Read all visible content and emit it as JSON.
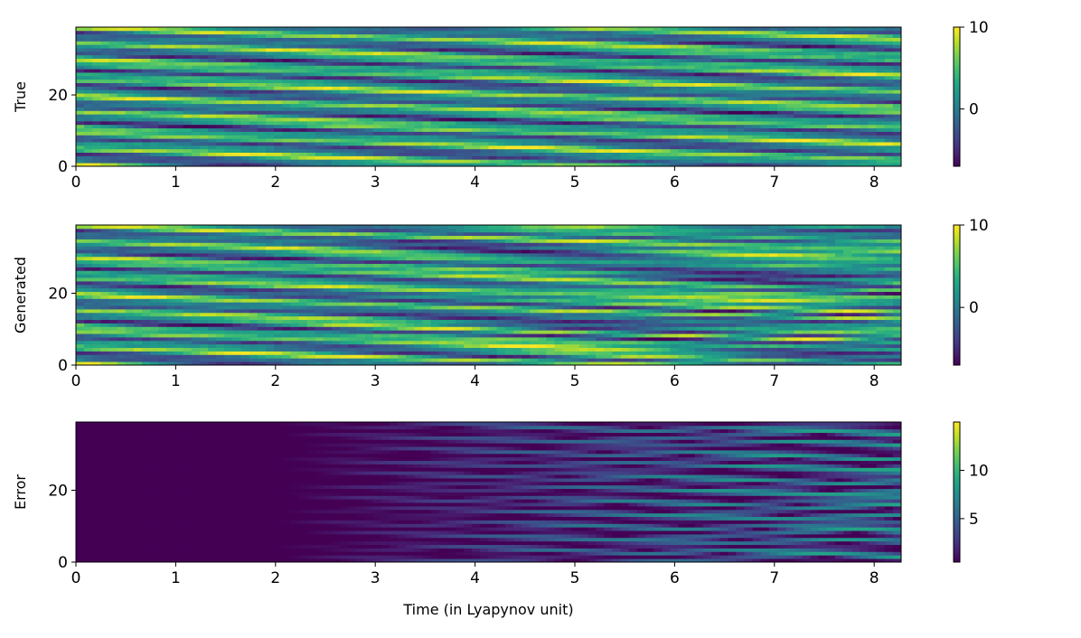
{
  "chart_data": [
    {
      "type": "heatmap",
      "ylabel": "True",
      "xlim": [
        0,
        8.27
      ],
      "ylim": [
        0,
        39
      ],
      "xticks": [
        0,
        1,
        2,
        3,
        4,
        5,
        6,
        7,
        8
      ],
      "yticks": [
        0,
        20
      ],
      "colormap": "viridis",
      "colorbar": {
        "range": [
          -7,
          10
        ],
        "ticks": [
          10,
          0
        ]
      },
      "field": {
        "kind": "traveling-waves",
        "n_rows": 40,
        "n_cols": 100,
        "bands": 8,
        "drift_rows_per_unit": -1.1,
        "amplitude_mean": 1.5,
        "amplitude_range": 8.5
      }
    },
    {
      "type": "heatmap",
      "ylabel": "Generated",
      "xlim": [
        0,
        8.27
      ],
      "ylim": [
        0,
        39
      ],
      "xticks": [
        0,
        1,
        2,
        3,
        4,
        5,
        6,
        7,
        8
      ],
      "yticks": [
        0,
        20
      ],
      "colormap": "viridis",
      "colorbar": {
        "range": [
          -7,
          10
        ],
        "ticks": [
          10,
          0
        ]
      },
      "field": {
        "kind": "traveling-waves",
        "n_rows": 40,
        "n_cols": 100,
        "bands": 8,
        "drift_rows_per_unit": -1.1,
        "amplitude_mean": 1.5,
        "amplitude_range": 8.5,
        "divergence_from_true_starts_at": 1.8
      }
    },
    {
      "type": "heatmap",
      "ylabel": "Error",
      "xlabel": "Time (in Lyapynov unit)",
      "xlim": [
        0,
        8.27
      ],
      "ylim": [
        0,
        39
      ],
      "xticks": [
        0,
        1,
        2,
        3,
        4,
        5,
        6,
        7,
        8
      ],
      "yticks": [
        0,
        20
      ],
      "colormap": "viridis",
      "colorbar": {
        "range": [
          0.5,
          15
        ],
        "ticks": [
          10,
          5
        ]
      },
      "field": {
        "kind": "absolute-error",
        "n_rows": 40,
        "n_cols": 100,
        "near_zero_until": 1.8,
        "growth_to": 8.27
      }
    }
  ]
}
